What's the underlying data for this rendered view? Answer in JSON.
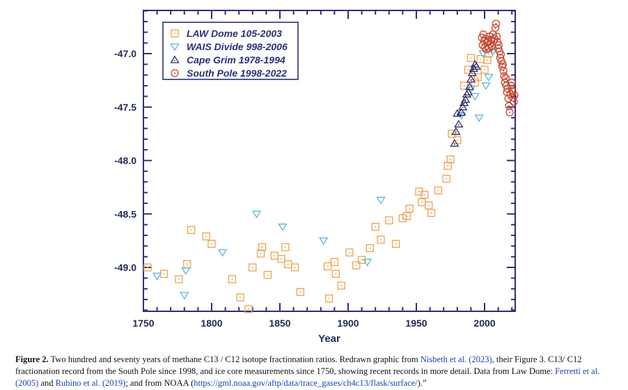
{
  "chart_data": {
    "type": "scatter",
    "title": "",
    "xlabel": "Year",
    "ylabel": "",
    "xlim": [
      1750,
      2022
    ],
    "ylim": [
      -49.4,
      -46.6
    ],
    "y_inverted": true,
    "x_ticks": [
      "1750",
      "1800",
      "1850",
      "1900",
      "1950",
      "2000"
    ],
    "y_ticks": [
      "-47.0",
      "-47.5",
      "-48.0",
      "-48.5",
      "-49.0"
    ],
    "legend_position": "top-left",
    "grid": false,
    "series": [
      {
        "name": "LAW Dome 105-2003",
        "marker": "square-dot",
        "color": "#f0a050",
        "points": [
          [
            1753,
            -49.0
          ],
          [
            1765,
            -49.06
          ],
          [
            1776,
            -49.11
          ],
          [
            1782,
            -48.97
          ],
          [
            1785,
            -48.65
          ],
          [
            1796,
            -48.71
          ],
          [
            1800,
            -48.78
          ],
          [
            1815,
            -49.11
          ],
          [
            1821,
            -49.28
          ],
          [
            1827,
            -49.39
          ],
          [
            1830,
            -49.0
          ],
          [
            1836,
            -48.87
          ],
          [
            1837,
            -48.81
          ],
          [
            1841,
            -49.07
          ],
          [
            1846,
            -48.89
          ],
          [
            1851,
            -48.92
          ],
          [
            1854,
            -48.81
          ],
          [
            1856,
            -48.97
          ],
          [
            1861,
            -49.0
          ],
          [
            1865,
            -49.23
          ],
          [
            1885,
            -48.99
          ],
          [
            1886,
            -49.29
          ],
          [
            1890,
            -48.95
          ],
          [
            1891,
            -49.06
          ],
          [
            1895,
            -49.17
          ],
          [
            1901,
            -48.86
          ],
          [
            1906,
            -48.98
          ],
          [
            1910,
            -48.93
          ],
          [
            1916,
            -48.82
          ],
          [
            1920,
            -48.62
          ],
          [
            1924,
            -48.74
          ],
          [
            1930,
            -48.56
          ],
          [
            1935,
            -48.78
          ],
          [
            1940,
            -48.54
          ],
          [
            1943,
            -48.52
          ],
          [
            1945,
            -48.45
          ],
          [
            1952,
            -48.29
          ],
          [
            1954,
            -48.39
          ],
          [
            1956,
            -48.32
          ],
          [
            1959,
            -48.42
          ],
          [
            1961,
            -48.49
          ],
          [
            1966,
            -48.28
          ],
          [
            1972,
            -48.17
          ],
          [
            1973,
            -48.05
          ],
          [
            1975,
            -47.99
          ],
          [
            1976,
            -47.75
          ],
          [
            1980,
            -47.81
          ],
          [
            1985,
            -47.3
          ],
          [
            1988,
            -47.15
          ],
          [
            1990,
            -47.04
          ],
          [
            1993,
            -47.27
          ],
          [
            1995,
            -47.22
          ],
          [
            1997,
            -47.05
          ],
          [
            2000,
            -47.15
          ],
          [
            2002,
            -47.06
          ],
          [
            2003,
            -47.0
          ]
        ]
      },
      {
        "name": "WAIS Divide 998-2006",
        "marker": "triangle-down",
        "color": "#5fb3e0",
        "points": [
          [
            1760,
            -49.08
          ],
          [
            1780,
            -49.26
          ],
          [
            1781,
            -49.03
          ],
          [
            1808,
            -48.86
          ],
          [
            1833,
            -48.5
          ],
          [
            1852,
            -48.62
          ],
          [
            1882,
            -48.75
          ],
          [
            1914,
            -48.95
          ],
          [
            1924,
            -48.37
          ],
          [
            1983,
            -47.58
          ],
          [
            1990,
            -47.33
          ],
          [
            1993,
            -47.4
          ],
          [
            1996,
            -47.6
          ],
          [
            1999,
            -47.0
          ],
          [
            2001,
            -47.3
          ],
          [
            2003,
            -47.22
          ],
          [
            2005,
            -46.95
          ],
          [
            2006,
            -46.98
          ]
        ]
      },
      {
        "name": "Cape Grim 1978-1994",
        "marker": "triangle-up",
        "color": "#2d2a62",
        "points": [
          [
            1978,
            -47.84
          ],
          [
            1979,
            -47.73
          ],
          [
            1980,
            -47.56
          ],
          [
            1981,
            -47.66
          ],
          [
            1983,
            -47.55
          ],
          [
            1984,
            -47.5
          ],
          [
            1985,
            -47.46
          ],
          [
            1986,
            -47.43
          ],
          [
            1987,
            -47.38
          ],
          [
            1988,
            -47.36
          ],
          [
            1989,
            -47.31
          ],
          [
            1990,
            -47.24
          ],
          [
            1991,
            -47.18
          ],
          [
            1992,
            -47.14
          ],
          [
            1993,
            -47.1
          ],
          [
            1994,
            -47.12
          ]
        ]
      },
      {
        "name": "South Pole 1998-2022",
        "marker": "circle-dot",
        "color": "#c8452e",
        "points": [
          [
            1998,
            -46.85
          ],
          [
            1998.6,
            -46.92
          ],
          [
            1999.1,
            -46.82
          ],
          [
            1999.7,
            -46.88
          ],
          [
            2000.2,
            -46.94
          ],
          [
            2000.8,
            -46.86
          ],
          [
            2001.3,
            -46.96
          ],
          [
            2001.9,
            -46.9
          ],
          [
            2002.5,
            -46.88
          ],
          [
            2003.1,
            -46.95
          ],
          [
            2003.7,
            -46.84
          ],
          [
            2004.3,
            -46.91
          ],
          [
            2004.9,
            -46.87
          ],
          [
            2005.5,
            -46.93
          ],
          [
            2006.1,
            -46.82
          ],
          [
            2006.7,
            -46.88
          ],
          [
            2007.3,
            -46.86
          ],
          [
            2007.9,
            -46.76
          ],
          [
            2008.4,
            -46.72
          ],
          [
            2008.9,
            -46.84
          ],
          [
            2009.4,
            -46.89
          ],
          [
            2009.9,
            -46.95
          ],
          [
            2010.4,
            -46.92
          ],
          [
            2010.9,
            -46.98
          ],
          [
            2011.4,
            -47.04
          ],
          [
            2011.9,
            -47.01
          ],
          [
            2012.4,
            -47.07
          ],
          [
            2012.9,
            -47.12
          ],
          [
            2013.4,
            -47.1
          ],
          [
            2013.9,
            -47.16
          ],
          [
            2014.4,
            -47.21
          ],
          [
            2014.9,
            -47.27
          ],
          [
            2015.4,
            -47.23
          ],
          [
            2015.9,
            -47.3
          ],
          [
            2016.4,
            -47.36
          ],
          [
            2016.9,
            -47.33
          ],
          [
            2017.4,
            -47.42
          ],
          [
            2017.9,
            -47.49
          ],
          [
            2018.4,
            -47.55
          ],
          [
            2018.9,
            -47.38
          ],
          [
            2019.4,
            -47.3
          ],
          [
            2019.9,
            -47.27
          ],
          [
            2020.4,
            -47.35
          ],
          [
            2020.9,
            -47.41
          ],
          [
            2021.4,
            -47.45
          ],
          [
            2021.9,
            -47.39
          ]
        ]
      }
    ]
  },
  "caption": {
    "label": "Figure 2.",
    "part1": " Two hundred and seventy years of methane C13 / C12 isotope fractionation ratios. Redrawn graphic from ",
    "link1": "Nisbeth et al. (2023)",
    "part2": ", their Figure 3. C13/ C12 fractionation record from the South Pole since 1998, and ice core measurements since 1750, showing recent records in more detail. Data from Law Dome: ",
    "link2": "Ferretti et al. (2005)",
    "part3": " and ",
    "link3": "Rubino et al. (2019)",
    "part4": "; and from NOAA (",
    "link4": "https://gml.noaa.gov/aftp/data/trace_gases/ch4c13/flask/surface/",
    "part5": ").”"
  }
}
